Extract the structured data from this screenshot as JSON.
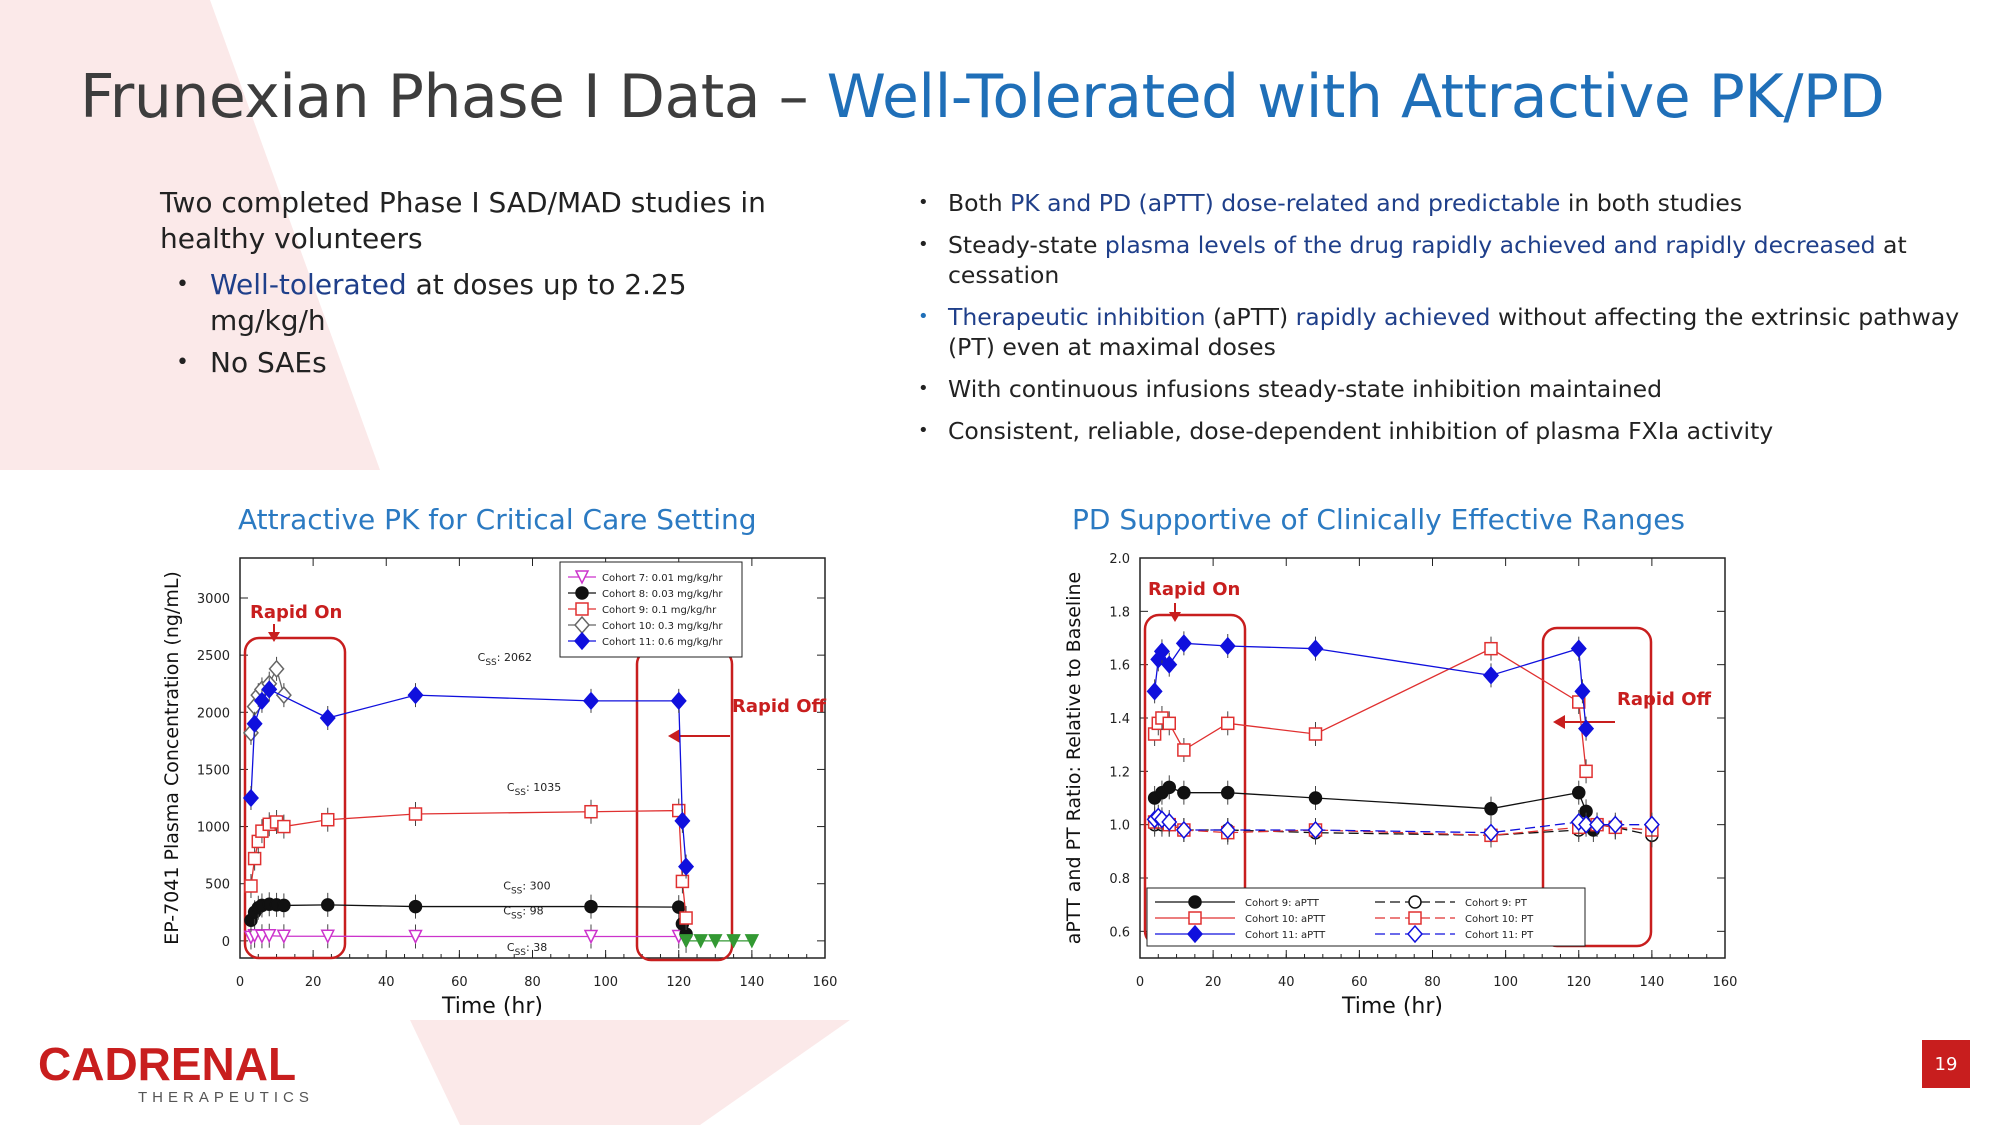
{
  "title": {
    "prefix": "Frunexian Phase I Data – ",
    "highlight": "Well-Tolerated with Attractive PK/PD"
  },
  "left": {
    "intro": "Two completed Phase I SAD/MAD studies in healthy volunteers",
    "bullets": [
      {
        "em": "Well-tolerated",
        "rest": " at doses up to 2.25 mg/kg/h"
      },
      {
        "em": "",
        "rest": "No SAEs"
      }
    ]
  },
  "right": {
    "b1": {
      "a": "Both ",
      "em": "PK and PD (aPTT) dose-related and predictable",
      "b": " in both studies"
    },
    "b2": {
      "a": "Steady-state ",
      "em": "plasma levels of the drug rapidly achieved and rapidly decreased",
      "b": " at cessation"
    },
    "b3": {
      "em1": "Therapeutic inhibition",
      "a": " (aPTT) ",
      "em2": "rapidly achieved",
      "b": " without affecting the extrinsic pathway (PT) even at maximal doses"
    },
    "b4": "With continuous infusions steady-state inhibition maintained",
    "b5": "Consistent, reliable, dose-dependent inhibition of plasma  FXIa activity"
  },
  "colors": {
    "accent_blue": "#1f6fb8",
    "dark_blue": "#1f3f8a",
    "red": "#c81e1e",
    "bg_pink": "#fbe9e9"
  },
  "chart_data": [
    {
      "type": "line",
      "title": "Attractive PK for Critical Care Setting",
      "xlabel": "Time (hr)",
      "ylabel": "EP-7041 Plasma Concentration (ng/mL)",
      "xlim": [
        0,
        160
      ],
      "ylim": [
        -150,
        3350
      ],
      "xticks": [
        0,
        20,
        40,
        60,
        80,
        100,
        120,
        140,
        160
      ],
      "yticks": [
        0,
        500,
        1000,
        1500,
        2000,
        2500,
        3000
      ],
      "legend": "top-right",
      "series": [
        {
          "name": "Cohort 7: 0.01 mg/kg/hr",
          "color": "#cc33cc",
          "marker": "triangle-down-open",
          "x": [
            3,
            4,
            6,
            8,
            12,
            24,
            48,
            96,
            120,
            122
          ],
          "y": [
            30,
            45,
            40,
            45,
            40,
            40,
            38,
            38,
            38,
            0
          ]
        },
        {
          "name": "Cohort 8: 0.03 mg/kg/hr",
          "color": "#111111",
          "marker": "circle-filled",
          "x": [
            3,
            4,
            5,
            6,
            8,
            10,
            12,
            24,
            48,
            96,
            120,
            121,
            122
          ],
          "y": [
            180,
            250,
            290,
            310,
            320,
            315,
            310,
            315,
            300,
            300,
            295,
            150,
            60
          ]
        },
        {
          "name": "Cohort 9: 0.1 mg/kg/hr",
          "color": "#e03030",
          "marker": "square-open",
          "x": [
            3,
            4,
            5,
            6,
            8,
            10,
            12,
            24,
            48,
            96,
            120,
            121,
            122
          ],
          "y": [
            480,
            720,
            870,
            960,
            1020,
            1040,
            1000,
            1060,
            1110,
            1130,
            1140,
            520,
            200
          ]
        },
        {
          "name": "Cohort 10: 0.3 mg/kg/hr",
          "color": "#666666",
          "marker": "diamond-open",
          "x": [
            3,
            4,
            5,
            6,
            8,
            10,
            12
          ],
          "y": [
            1820,
            2050,
            2150,
            2200,
            2250,
            2380,
            2150
          ]
        },
        {
          "name": "Cohort 11: 0.6 mg/kg/hr",
          "color": "#1010dd",
          "marker": "diamond-filled",
          "x": [
            3,
            4,
            6,
            8,
            24,
            48,
            96,
            120,
            121,
            122
          ],
          "y": [
            1250,
            1900,
            2100,
            2200,
            1950,
            2150,
            2100,
            2100,
            1050,
            650
          ]
        }
      ],
      "tail": {
        "color": "#339933",
        "x": [
          122,
          126,
          130,
          135,
          140
        ],
        "y": [
          0,
          0,
          0,
          0,
          0
        ]
      },
      "annotations": [
        {
          "text": "C",
          "sub": "SS",
          "val": ": 2062",
          "x": 65,
          "y": 2450
        },
        {
          "text": "C",
          "sub": "SS",
          "val": ": 1035",
          "x": 73,
          "y": 1310
        },
        {
          "text": "C",
          "sub": "SS",
          "val": ": 300",
          "x": 72,
          "y": 450
        },
        {
          "text": "C",
          "sub": "SS",
          "val": ": 98",
          "x": 72,
          "y": 230
        },
        {
          "text": "C",
          "sub": "SS",
          "val": ": 38",
          "x": 73,
          "y": -90
        }
      ],
      "callouts": {
        "on": "Rapid On",
        "off": "Rapid Off"
      }
    },
    {
      "type": "line",
      "title": "PD Supportive of Clinically Effective Ranges",
      "xlabel": "Time (hr)",
      "ylabel": "aPTT and PT Ratio: Relative to Baseline",
      "xlim": [
        0,
        160
      ],
      "ylim": [
        0.5,
        2.0
      ],
      "xticks": [
        0,
        20,
        40,
        60,
        80,
        100,
        120,
        140,
        160
      ],
      "yticks": [
        0.6,
        0.8,
        1.0,
        1.2,
        1.4,
        1.6,
        1.8,
        2.0
      ],
      "legend": "bottom-left",
      "series": [
        {
          "name": "Cohort 9: aPTT",
          "color": "#111111",
          "marker": "circle-filled",
          "dash": false,
          "x": [
            4,
            6,
            8,
            12,
            24,
            48,
            96,
            120,
            122,
            124
          ],
          "y": [
            1.1,
            1.12,
            1.14,
            1.12,
            1.12,
            1.1,
            1.06,
            1.12,
            1.05,
            0.98
          ]
        },
        {
          "name": "Cohort 10: aPTT",
          "color": "#e03030",
          "marker": "square-open",
          "dash": false,
          "x": [
            4,
            5,
            6,
            8,
            12,
            24,
            48,
            96,
            120,
            122
          ],
          "y": [
            1.34,
            1.38,
            1.4,
            1.38,
            1.28,
            1.38,
            1.34,
            1.66,
            1.46,
            1.2
          ]
        },
        {
          "name": "Cohort 11: aPTT",
          "color": "#1010dd",
          "marker": "diamond-filled",
          "dash": false,
          "x": [
            4,
            5,
            6,
            8,
            12,
            24,
            48,
            96,
            120,
            121,
            122
          ],
          "y": [
            1.5,
            1.62,
            1.65,
            1.6,
            1.68,
            1.67,
            1.66,
            1.56,
            1.66,
            1.5,
            1.36
          ]
        },
        {
          "name": "Cohort 9: PT",
          "color": "#111111",
          "marker": "circle-open",
          "dash": true,
          "x": [
            4,
            6,
            8,
            12,
            24,
            48,
            96,
            120,
            125,
            130,
            140
          ],
          "y": [
            1.0,
            1.0,
            1.0,
            0.98,
            0.98,
            0.97,
            0.96,
            0.98,
            1.0,
            0.99,
            0.96
          ]
        },
        {
          "name": "Cohort 10: PT",
          "color": "#e03030",
          "marker": "square-open",
          "dash": true,
          "x": [
            4,
            6,
            8,
            12,
            24,
            48,
            96,
            120,
            125,
            130,
            140
          ],
          "y": [
            1.01,
            1.01,
            1.0,
            0.98,
            0.97,
            0.98,
            0.96,
            0.99,
            1.0,
            0.99,
            0.98
          ]
        },
        {
          "name": "Cohort 11: PT",
          "color": "#1010dd",
          "marker": "diamond-open",
          "dash": true,
          "x": [
            4,
            5,
            6,
            8,
            12,
            24,
            48,
            96,
            120,
            122,
            125,
            130,
            140
          ],
          "y": [
            1.02,
            1.03,
            1.02,
            1.01,
            0.98,
            0.98,
            0.98,
            0.97,
            1.01,
            1.0,
            1.0,
            1.0,
            1.0
          ]
        }
      ],
      "callouts": {
        "on": "Rapid On",
        "off": "Rapid Off"
      }
    }
  ],
  "logo": {
    "name": "CADRENAL",
    "sub": "THERAPEUTICS"
  },
  "page_number": "19"
}
